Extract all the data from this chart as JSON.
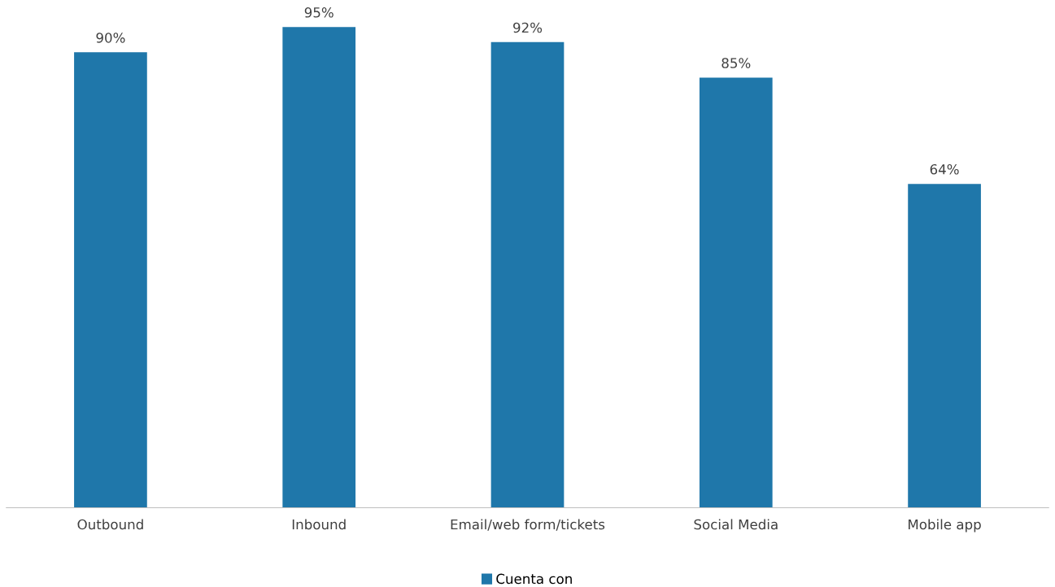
{
  "chart_data": {
    "type": "bar",
    "categories": [
      "Outbound",
      "Inbound",
      "Email/web form/tickets",
      "Social Media",
      "Mobile app"
    ],
    "series": [
      {
        "name": "Cuenta con",
        "color": "#1f77aa",
        "values": [
          90,
          95,
          92,
          85,
          64
        ],
        "value_labels": [
          "90%",
          "95%",
          "92%",
          "85%",
          "64%"
        ]
      }
    ],
    "tick_labels": "x",
    "legend": "bottom"
  }
}
